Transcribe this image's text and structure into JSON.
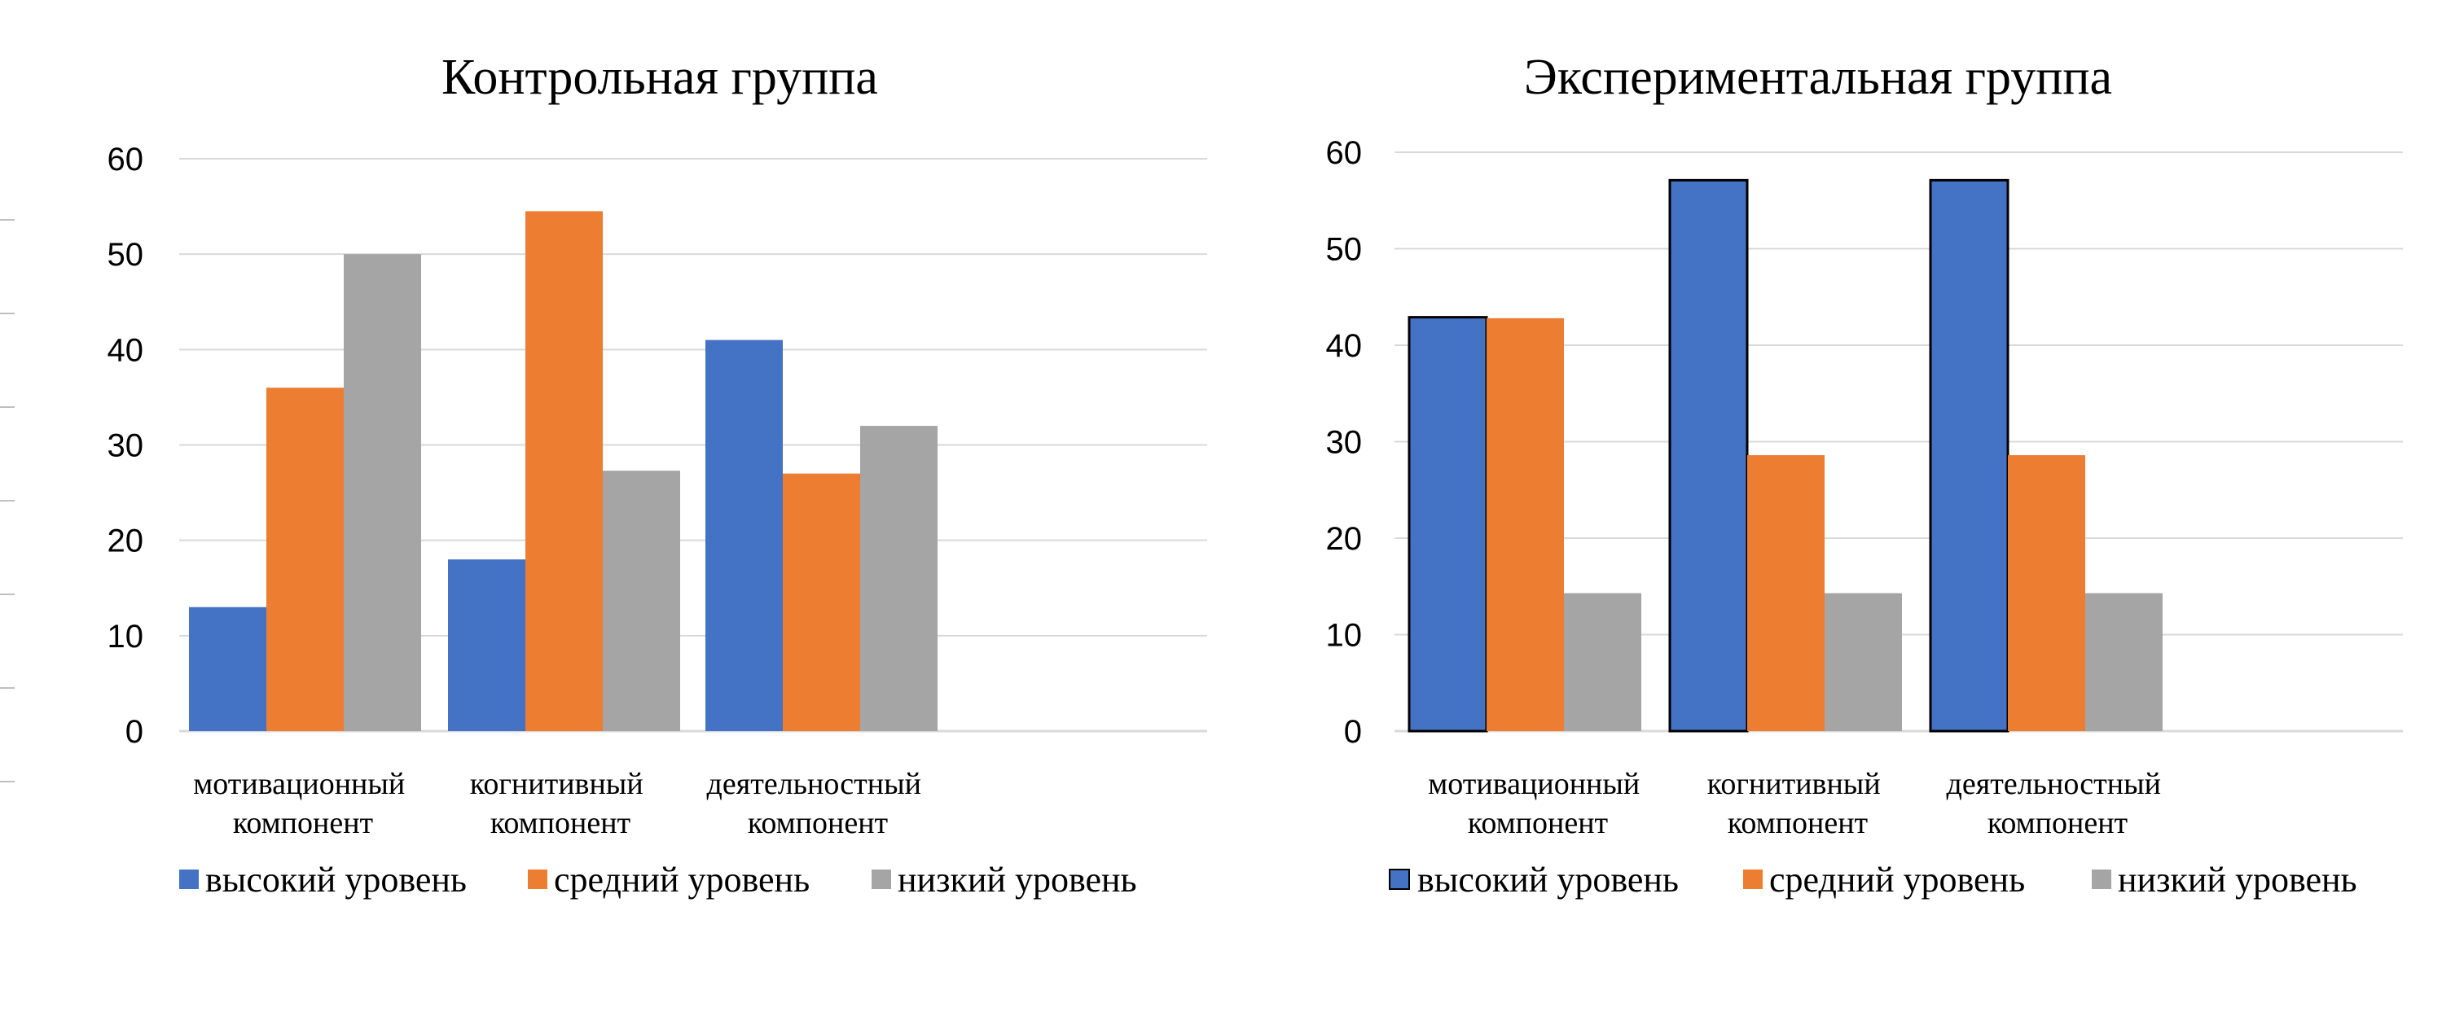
{
  "chart_data": [
    {
      "type": "bar",
      "title": "Контрольная группа",
      "categories": [
        [
          "мотивационный",
          "компонент"
        ],
        [
          "когнитивный",
          "компонент"
        ],
        [
          "деятельностный",
          "компонент"
        ]
      ],
      "ylim": [
        0,
        60
      ],
      "yticks": [
        "0",
        "10",
        "20",
        "30",
        "40",
        "50",
        "60"
      ],
      "grid": true,
      "legend_position": "bottom",
      "series": [
        {
          "name": "высокий уровень",
          "color": "#4472c4",
          "values": [
            13,
            18,
            41
          ]
        },
        {
          "name": "средний уровень",
          "color": "#ed7d31",
          "values": [
            36,
            54.5,
            27
          ]
        },
        {
          "name": "низкий уровень",
          "color": "#a5a5a5",
          "values": [
            50,
            27.3,
            32
          ]
        }
      ]
    },
    {
      "type": "bar",
      "title": "Экспериментальная группа",
      "categories": [
        [
          "мотивационный",
          "компонент"
        ],
        [
          "когнитивный",
          "компонент"
        ],
        [
          "деятельностный",
          "компонент"
        ]
      ],
      "ylim": [
        0,
        60
      ],
      "yticks": [
        "0",
        "10",
        "20",
        "30",
        "40",
        "50",
        "60"
      ],
      "grid": true,
      "legend_position": "bottom",
      "series": [
        {
          "name": "высокий уровень",
          "color": "#4472c4",
          "outlined": true,
          "values": [
            42.9,
            57.1,
            57.1
          ]
        },
        {
          "name": "средний уровень",
          "color": "#ed7d31",
          "values": [
            42.8,
            28.6,
            28.6
          ]
        },
        {
          "name": "низкий уровень",
          "color": "#a5a5a5",
          "values": [
            14.3,
            14.3,
            14.3
          ]
        }
      ]
    }
  ]
}
